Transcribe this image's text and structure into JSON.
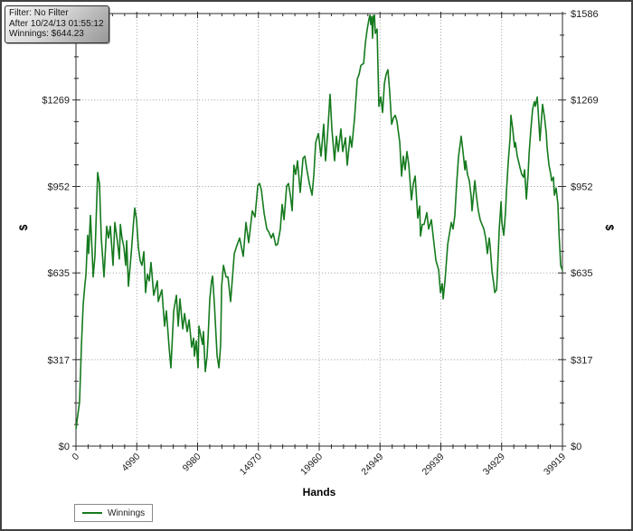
{
  "window": {
    "background": "#ffffff",
    "border_color": "#414141"
  },
  "tooltip": {
    "filter_line": "Filter: No Filter",
    "after_line": "After 10/24/13 01:55:12",
    "winnings_line": "Winnings: $644.23"
  },
  "legend": {
    "label": "Winnings"
  },
  "chart_data": {
    "type": "line",
    "title": "",
    "xlabel": "Hands",
    "ylabel": "$",
    "ylabel_right": "$",
    "xlim": [
      0,
      39919
    ],
    "ylim": [
      0,
      1586
    ],
    "grid": "dotted-major",
    "legend_position": "bottom-left",
    "x_ticks": [
      {
        "v": 0,
        "label": "0"
      },
      {
        "v": 4990,
        "label": "4990"
      },
      {
        "v": 9980,
        "label": "9980"
      },
      {
        "v": 14970,
        "label": "14970"
      },
      {
        "v": 19960,
        "label": "19960"
      },
      {
        "v": 24949,
        "label": "24949"
      },
      {
        "v": 29939,
        "label": "29939"
      },
      {
        "v": 34929,
        "label": "34929"
      },
      {
        "v": 39919,
        "label": "39919"
      }
    ],
    "y_ticks": [
      {
        "v": 0,
        "label": "$0"
      },
      {
        "v": 317,
        "label": "$317"
      },
      {
        "v": 635,
        "label": "$635"
      },
      {
        "v": 952,
        "label": "$952"
      },
      {
        "v": 1269,
        "label": "$1269"
      },
      {
        "v": 1586,
        "label": "$1586"
      }
    ],
    "x_minor_divisions": 5,
    "y_minor_divisions": 4,
    "series": [
      {
        "name": "Winnings",
        "color": "#157a1e",
        "points": [
          [
            0,
            63
          ],
          [
            150,
            113
          ],
          [
            300,
            163
          ],
          [
            450,
            373
          ],
          [
            590,
            520
          ],
          [
            740,
            596
          ],
          [
            820,
            630
          ],
          [
            960,
            773
          ],
          [
            1040,
            706
          ],
          [
            1190,
            846
          ],
          [
            1340,
            696
          ],
          [
            1410,
            620
          ],
          [
            1560,
            696
          ],
          [
            1780,
            1003
          ],
          [
            1930,
            963
          ],
          [
            2080,
            763
          ],
          [
            2300,
            620
          ],
          [
            2520,
            806
          ],
          [
            2670,
            763
          ],
          [
            2820,
            806
          ],
          [
            3040,
            663
          ],
          [
            3190,
            820
          ],
          [
            3410,
            746
          ],
          [
            3560,
            686
          ],
          [
            3640,
            813
          ],
          [
            3780,
            763
          ],
          [
            3930,
            730
          ],
          [
            4080,
            663
          ],
          [
            4160,
            753
          ],
          [
            4300,
            586
          ],
          [
            4530,
            706
          ],
          [
            4680,
            796
          ],
          [
            4820,
            873
          ],
          [
            4970,
            830
          ],
          [
            5120,
            730
          ],
          [
            5270,
            680
          ],
          [
            5420,
            663
          ],
          [
            5570,
            713
          ],
          [
            5710,
            563
          ],
          [
            5860,
            630
          ],
          [
            6010,
            606
          ],
          [
            6160,
            673
          ],
          [
            6380,
            553
          ],
          [
            6680,
            606
          ],
          [
            6750,
            530
          ],
          [
            7050,
            573
          ],
          [
            7270,
            440
          ],
          [
            7420,
            496
          ],
          [
            7640,
            363
          ],
          [
            7790,
            287
          ],
          [
            8020,
            496
          ],
          [
            8240,
            553
          ],
          [
            8390,
            440
          ],
          [
            8530,
            540
          ],
          [
            8760,
            430
          ],
          [
            8910,
            486
          ],
          [
            9130,
            420
          ],
          [
            9280,
            463
          ],
          [
            9500,
            363
          ],
          [
            9650,
            396
          ],
          [
            9720,
            330
          ],
          [
            9870,
            386
          ],
          [
            10020,
            287
          ],
          [
            10090,
            440
          ],
          [
            10390,
            373
          ],
          [
            10460,
            420
          ],
          [
            10610,
            273
          ],
          [
            10760,
            330
          ],
          [
            10840,
            396
          ],
          [
            10980,
            540
          ],
          [
            11130,
            606
          ],
          [
            11210,
            623
          ],
          [
            11360,
            520
          ],
          [
            11580,
            330
          ],
          [
            11730,
            287
          ],
          [
            11870,
            373
          ],
          [
            11950,
            586
          ],
          [
            12100,
            663
          ],
          [
            12320,
            620
          ],
          [
            12470,
            620
          ],
          [
            12690,
            530
          ],
          [
            12990,
            706
          ],
          [
            13210,
            736
          ],
          [
            13430,
            763
          ],
          [
            13730,
            696
          ],
          [
            13950,
            820
          ],
          [
            14170,
            746
          ],
          [
            14470,
            863
          ],
          [
            14690,
            840
          ],
          [
            14920,
            956
          ],
          [
            15070,
            963
          ],
          [
            15210,
            940
          ],
          [
            15440,
            853
          ],
          [
            15660,
            796
          ],
          [
            15810,
            786
          ],
          [
            16030,
            763
          ],
          [
            16180,
            780
          ],
          [
            16400,
            736
          ],
          [
            16550,
            740
          ],
          [
            16770,
            796
          ],
          [
            16920,
            886
          ],
          [
            17070,
            830
          ],
          [
            17290,
            953
          ],
          [
            17440,
            963
          ],
          [
            17590,
            920
          ],
          [
            17740,
            863
          ],
          [
            17880,
            1030
          ],
          [
            18030,
            996
          ],
          [
            18180,
            1046
          ],
          [
            18400,
            930
          ],
          [
            18630,
            1056
          ],
          [
            18780,
            1063
          ],
          [
            18920,
            1020
          ],
          [
            19150,
            963
          ],
          [
            19370,
            920
          ],
          [
            19520,
            996
          ],
          [
            19670,
            1113
          ],
          [
            19890,
            1146
          ],
          [
            20110,
            1063
          ],
          [
            20330,
            1180
          ],
          [
            20480,
            1046
          ],
          [
            20630,
            1130
          ],
          [
            20850,
            1290
          ],
          [
            21000,
            1163
          ],
          [
            21220,
            1046
          ],
          [
            21370,
            1136
          ],
          [
            21520,
            1080
          ],
          [
            21740,
            1163
          ],
          [
            21890,
            1080
          ],
          [
            22110,
            1130
          ],
          [
            22260,
            1030
          ],
          [
            22490,
            1136
          ],
          [
            22630,
            1096
          ],
          [
            22860,
            1203
          ],
          [
            23080,
            1346
          ],
          [
            23230,
            1363
          ],
          [
            23380,
            1396
          ],
          [
            23600,
            1403
          ],
          [
            23750,
            1479
          ],
          [
            23900,
            1529
          ],
          [
            24040,
            1565
          ],
          [
            24120,
            1580
          ],
          [
            24190,
            1546
          ],
          [
            24270,
            1575
          ],
          [
            24340,
            1496
          ],
          [
            24410,
            1578
          ],
          [
            24490,
            1580
          ],
          [
            24560,
            1513
          ],
          [
            24710,
            1529
          ],
          [
            24860,
            1246
          ],
          [
            25010,
            1280
          ],
          [
            25160,
            1223
          ],
          [
            25310,
            1330
          ],
          [
            25450,
            1363
          ],
          [
            25600,
            1380
          ],
          [
            25750,
            1296
          ],
          [
            25900,
            1180
          ],
          [
            26050,
            1203
          ],
          [
            26200,
            1213
          ],
          [
            26340,
            1190
          ],
          [
            26570,
            1113
          ],
          [
            26720,
            990
          ],
          [
            26860,
            1063
          ],
          [
            27010,
            1013
          ],
          [
            27160,
            1080
          ],
          [
            27310,
            1030
          ],
          [
            27530,
            903
          ],
          [
            27680,
            963
          ],
          [
            27830,
            990
          ],
          [
            28050,
            836
          ],
          [
            28200,
            880
          ],
          [
            28270,
            770
          ],
          [
            28420,
            813
          ],
          [
            28570,
            813
          ],
          [
            28790,
            856
          ],
          [
            28940,
            796
          ],
          [
            29160,
            830
          ],
          [
            29310,
            770
          ],
          [
            29540,
            680
          ],
          [
            29760,
            646
          ],
          [
            29910,
            563
          ],
          [
            30050,
            596
          ],
          [
            30130,
            540
          ],
          [
            30280,
            606
          ],
          [
            30500,
            740
          ],
          [
            30650,
            780
          ],
          [
            30800,
            820
          ],
          [
            30940,
            796
          ],
          [
            31090,
            846
          ],
          [
            31240,
            963
          ],
          [
            31390,
            1063
          ],
          [
            31540,
            1113
          ],
          [
            31610,
            1136
          ],
          [
            31760,
            1080
          ],
          [
            31910,
            1013
          ],
          [
            31980,
            1046
          ],
          [
            32130,
            996
          ],
          [
            32280,
            973
          ],
          [
            32430,
            913
          ],
          [
            32500,
            863
          ],
          [
            32730,
            973
          ],
          [
            32870,
            913
          ],
          [
            33020,
            863
          ],
          [
            33170,
            830
          ],
          [
            33250,
            820
          ],
          [
            33470,
            796
          ],
          [
            33620,
            763
          ],
          [
            33760,
            706
          ],
          [
            33910,
            763
          ],
          [
            33990,
            730
          ],
          [
            34140,
            640
          ],
          [
            34280,
            596
          ],
          [
            34360,
            563
          ],
          [
            34510,
            573
          ],
          [
            34580,
            630
          ],
          [
            34730,
            796
          ],
          [
            34880,
            896
          ],
          [
            34950,
            820
          ],
          [
            35100,
            773
          ],
          [
            35250,
            863
          ],
          [
            35320,
            930
          ],
          [
            35470,
            1040
          ],
          [
            35620,
            1130
          ],
          [
            35690,
            1213
          ],
          [
            35840,
            1163
          ],
          [
            35990,
            1096
          ],
          [
            36060,
            1113
          ],
          [
            36210,
            1063
          ],
          [
            36360,
            1036
          ],
          [
            36440,
            1020
          ],
          [
            36580,
            996
          ],
          [
            36730,
            986
          ],
          [
            36810,
            1013
          ],
          [
            36960,
            906
          ],
          [
            37100,
            996
          ],
          [
            37180,
            1073
          ],
          [
            37330,
            1163
          ],
          [
            37470,
            1236
          ],
          [
            37620,
            1263
          ],
          [
            37700,
            1246
          ],
          [
            37850,
            1280
          ],
          [
            37920,
            1230
          ],
          [
            38070,
            1120
          ],
          [
            38220,
            1213
          ],
          [
            38290,
            1253
          ],
          [
            38440,
            1206
          ],
          [
            38590,
            1146
          ],
          [
            38660,
            1096
          ],
          [
            38810,
            1030
          ],
          [
            38960,
            996
          ],
          [
            39030,
            973
          ],
          [
            39180,
            986
          ],
          [
            39260,
            920
          ],
          [
            39400,
            946
          ],
          [
            39550,
            886
          ],
          [
            39630,
            786
          ],
          [
            39700,
            730
          ],
          [
            39770,
            663
          ],
          [
            39919,
            644
          ]
        ]
      }
    ]
  }
}
